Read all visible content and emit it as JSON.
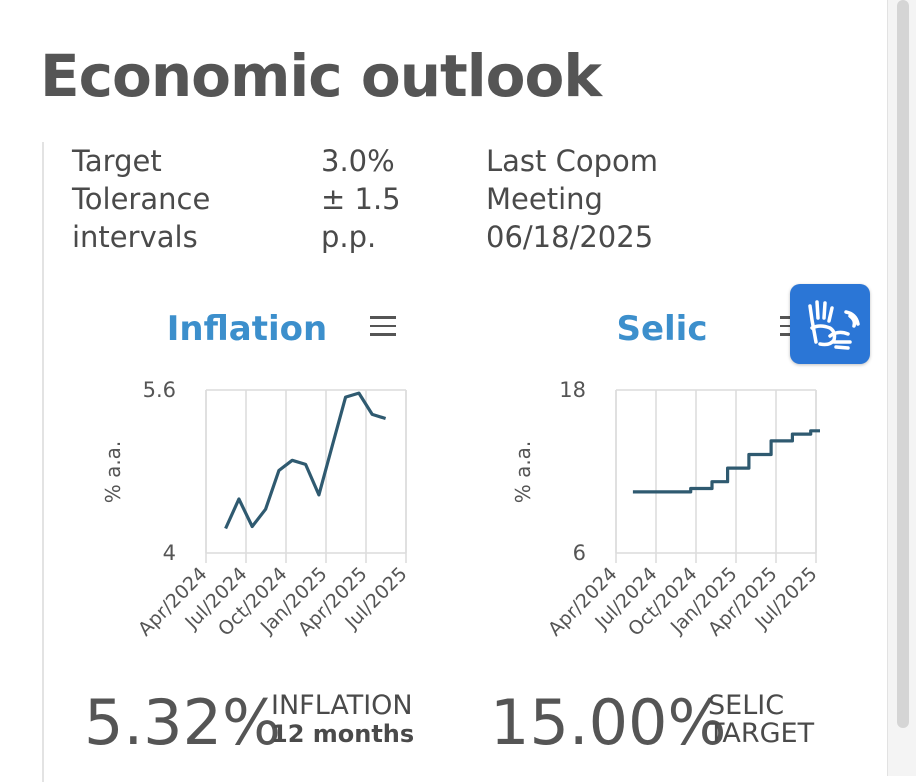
{
  "page": {
    "title": "Economic outlook"
  },
  "info": {
    "label_lines": [
      "Target",
      "Tolerance",
      "intervals"
    ],
    "value_lines": [
      "3.0%",
      "± 1.5",
      "p.p."
    ],
    "meeting_lines": [
      "Last Copom",
      "Meeting",
      "06/18/2025"
    ]
  },
  "icons": {
    "menu": "hamburger-menu-icon",
    "accessibility": "sign-language-hands-icon"
  },
  "colors": {
    "title_blue": "#3c8fcc",
    "series_line": "#2f5a70",
    "grid": "#dcdcdc",
    "accessibility_blue": "#2b76d6"
  },
  "chart_data": [
    {
      "type": "line",
      "title": "Inflation",
      "ylabel": "% a.a.",
      "ylim": [
        4,
        5.6
      ],
      "y_ticks": [
        "5.6",
        "4"
      ],
      "x_tick_labels": [
        "Apr/2024",
        "Jul/2024",
        "Oct/2024",
        "Jan/2025",
        "Apr/2025",
        "Jul/2025"
      ],
      "grid": true,
      "series": [
        {
          "x": [
            "2024-05-15",
            "2024-06-15",
            "2024-07-15",
            "2024-08-15",
            "2024-09-15",
            "2024-10-15",
            "2024-11-15",
            "2024-12-15",
            "2025-01-15",
            "2025-02-15",
            "2025-03-15",
            "2025-04-15",
            "2025-05-15"
          ],
          "values": [
            4.24,
            4.53,
            4.26,
            4.43,
            4.81,
            4.91,
            4.87,
            4.57,
            5.05,
            5.53,
            5.57,
            5.36,
            5.32
          ]
        }
      ],
      "headline_value": "5.32%",
      "headline_label_lines": [
        "INFLATION",
        "12 months"
      ]
    },
    {
      "type": "line",
      "title": "Selic",
      "ylabel": "% a.a.",
      "ylim": [
        6,
        18
      ],
      "y_ticks": [
        "18",
        "6"
      ],
      "x_tick_labels": [
        "Apr/2024",
        "Jul/2024",
        "Oct/2024",
        "Jan/2025",
        "Apr/2025",
        "Jul/2025"
      ],
      "grid": true,
      "step": true,
      "series": [
        {
          "x": [
            "2024-05-09",
            "2024-09-19",
            "2024-11-07",
            "2024-12-12",
            "2025-01-30",
            "2025-03-20",
            "2025-05-08",
            "2025-06-19",
            "2025-07-10"
          ],
          "values": [
            10.5,
            10.75,
            11.25,
            12.25,
            13.25,
            14.25,
            14.75,
            15.0,
            15.0
          ]
        }
      ],
      "headline_value": "15.00%",
      "headline_label_lines": [
        "SELIC",
        "TARGET"
      ]
    }
  ]
}
